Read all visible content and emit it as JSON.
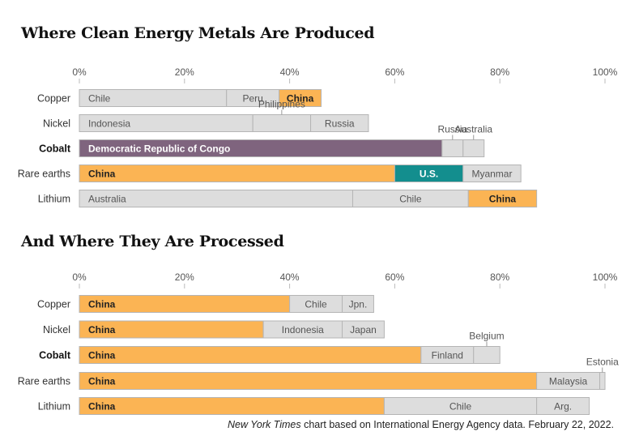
{
  "colors": {
    "china": "#fbb454",
    "other": "#dddddd",
    "congo": "#7f647e",
    "us": "#138e8e"
  },
  "source": {
    "pub": "New York Times",
    "rest": " chart based on International Energy Agency data. February 22, 2022."
  },
  "chart_data": [
    {
      "type": "bar",
      "stacked": true,
      "orientation": "horizontal",
      "title": "Where Clean Energy Metals Are Produced",
      "xlim": [
        0,
        100
      ],
      "ticks": [
        "0%",
        "20%",
        "40%",
        "60%",
        "80%",
        "100%"
      ],
      "categories": [
        "Copper",
        "Nickel",
        "Cobalt",
        "Rare earths",
        "Lithium"
      ],
      "rows": [
        {
          "category": "Copper",
          "segments": [
            {
              "name": "Chile",
              "value": 28
            },
            {
              "name": "Peru",
              "value": 10
            },
            {
              "name": "China",
              "value": 8
            }
          ]
        },
        {
          "category": "Nickel",
          "segments": [
            {
              "name": "Indonesia",
              "value": 33
            },
            {
              "name": "Philippines",
              "value": 11
            },
            {
              "name": "Russia",
              "value": 11
            }
          ]
        },
        {
          "category": "Cobalt",
          "segments": [
            {
              "name": "Democratic Republic of Congo",
              "value": 69
            },
            {
              "name": "Russia",
              "value": 4
            },
            {
              "name": "Australia",
              "value": 4
            }
          ]
        },
        {
          "category": "Rare earths",
          "segments": [
            {
              "name": "China",
              "value": 60
            },
            {
              "name": "U.S.",
              "value": 13
            },
            {
              "name": "Myanmar",
              "value": 11
            }
          ]
        },
        {
          "category": "Lithium",
          "segments": [
            {
              "name": "Australia",
              "value": 52
            },
            {
              "name": "Chile",
              "value": 22
            },
            {
              "name": "China",
              "value": 13
            }
          ]
        }
      ]
    },
    {
      "type": "bar",
      "stacked": true,
      "orientation": "horizontal",
      "title": "And Where They Are Processed",
      "xlim": [
        0,
        100
      ],
      "ticks": [
        "0%",
        "20%",
        "40%",
        "60%",
        "80%",
        "100%"
      ],
      "categories": [
        "Copper",
        "Nickel",
        "Cobalt",
        "Rare earths",
        "Lithium"
      ],
      "rows": [
        {
          "category": "Copper",
          "segments": [
            {
              "name": "China",
              "value": 40
            },
            {
              "name": "Chile",
              "value": 10
            },
            {
              "name": "Jpn.",
              "value": 6
            }
          ]
        },
        {
          "category": "Nickel",
          "segments": [
            {
              "name": "China",
              "value": 35
            },
            {
              "name": "Indonesia",
              "value": 15
            },
            {
              "name": "Japan",
              "value": 8
            }
          ]
        },
        {
          "category": "Cobalt",
          "segments": [
            {
              "name": "China",
              "value": 65
            },
            {
              "name": "Finland",
              "value": 10
            },
            {
              "name": "Belgium",
              "value": 5
            }
          ]
        },
        {
          "category": "Rare earths",
          "segments": [
            {
              "name": "China",
              "value": 87
            },
            {
              "name": "Malaysia",
              "value": 12
            },
            {
              "name": "Estonia",
              "value": 1
            }
          ]
        },
        {
          "category": "Lithium",
          "segments": [
            {
              "name": "China",
              "value": 58
            },
            {
              "name": "Chile",
              "value": 29
            },
            {
              "name": "Arg.",
              "value": 10
            }
          ]
        }
      ]
    }
  ]
}
